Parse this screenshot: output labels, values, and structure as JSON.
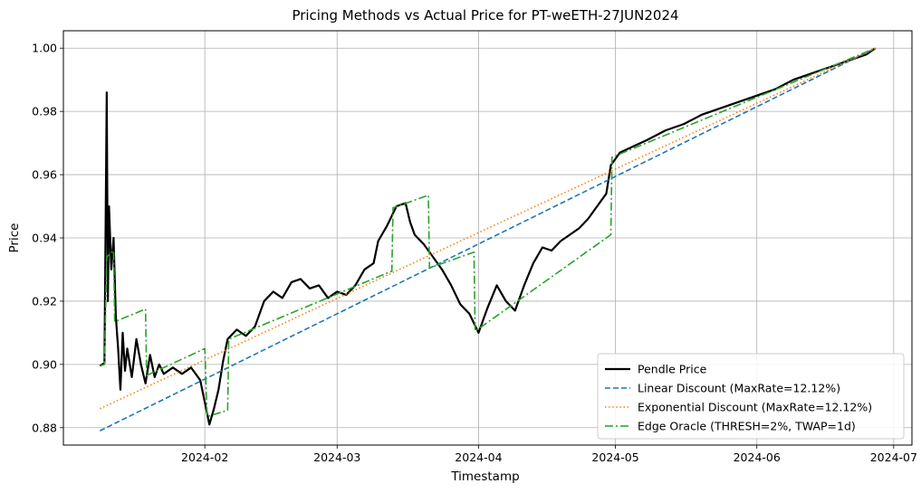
{
  "chart_data": {
    "type": "line",
    "title": "Pricing Methods vs Actual Price for PT-weETH-27JUN2024",
    "xlabel": "Timestamp",
    "ylabel": "Price",
    "xlim": [
      "2024-01-01",
      "2024-07-05"
    ],
    "ylim": [
      0.8745,
      1.0055
    ],
    "x_ticks": [
      "2024-02",
      "2024-03",
      "2024-04",
      "2024-05",
      "2024-06",
      "2024-07"
    ],
    "y_ticks": [
      "0.88",
      "0.90",
      "0.92",
      "0.94",
      "0.96",
      "0.98",
      "1.00"
    ],
    "grid": true,
    "legend_position": "lower-right",
    "series": [
      {
        "name": "Pendle Price",
        "color": "#000000",
        "style": "solid",
        "points": [
          [
            "2024-01-09",
            0.8995
          ],
          [
            "2024-01-10",
            0.9005
          ],
          [
            "2024-01-10T12",
            0.986
          ],
          [
            "2024-01-10T18",
            0.92
          ],
          [
            "2024-01-11",
            0.95
          ],
          [
            "2024-01-11T12",
            0.93
          ],
          [
            "2024-01-12",
            0.94
          ],
          [
            "2024-01-12T12",
            0.915
          ],
          [
            "2024-01-13",
            0.905
          ],
          [
            "2024-01-13T12",
            0.892
          ],
          [
            "2024-01-14",
            0.91
          ],
          [
            "2024-01-14T12",
            0.898
          ],
          [
            "2024-01-15",
            0.905
          ],
          [
            "2024-01-16",
            0.896
          ],
          [
            "2024-01-17",
            0.908
          ],
          [
            "2024-01-18",
            0.9
          ],
          [
            "2024-01-19",
            0.894
          ],
          [
            "2024-01-20",
            0.903
          ],
          [
            "2024-01-21",
            0.896
          ],
          [
            "2024-01-22",
            0.9
          ],
          [
            "2024-01-23",
            0.897
          ],
          [
            "2024-01-25",
            0.899
          ],
          [
            "2024-01-27",
            0.897
          ],
          [
            "2024-01-29",
            0.899
          ],
          [
            "2024-01-30",
            0.897
          ],
          [
            "2024-01-31",
            0.895
          ],
          [
            "2024-02-01",
            0.888
          ],
          [
            "2024-02-02",
            0.881
          ],
          [
            "2024-02-03",
            0.886
          ],
          [
            "2024-02-04",
            0.892
          ],
          [
            "2024-02-05",
            0.901
          ],
          [
            "2024-02-06",
            0.908
          ],
          [
            "2024-02-08",
            0.911
          ],
          [
            "2024-02-10",
            0.909
          ],
          [
            "2024-02-12",
            0.912
          ],
          [
            "2024-02-14",
            0.92
          ],
          [
            "2024-02-16",
            0.923
          ],
          [
            "2024-02-18",
            0.921
          ],
          [
            "2024-02-20",
            0.926
          ],
          [
            "2024-02-22",
            0.927
          ],
          [
            "2024-02-24",
            0.924
          ],
          [
            "2024-02-26",
            0.925
          ],
          [
            "2024-02-28",
            0.921
          ],
          [
            "2024-03-01",
            0.923
          ],
          [
            "2024-03-03",
            0.922
          ],
          [
            "2024-03-05",
            0.925
          ],
          [
            "2024-03-07",
            0.93
          ],
          [
            "2024-03-09",
            0.932
          ],
          [
            "2024-03-10",
            0.939
          ],
          [
            "2024-03-12",
            0.944
          ],
          [
            "2024-03-14",
            0.95
          ],
          [
            "2024-03-16",
            0.951
          ],
          [
            "2024-03-17",
            0.945
          ],
          [
            "2024-03-18",
            0.941
          ],
          [
            "2024-03-20",
            0.938
          ],
          [
            "2024-03-22",
            0.934
          ],
          [
            "2024-03-24",
            0.93
          ],
          [
            "2024-03-26",
            0.925
          ],
          [
            "2024-03-28",
            0.919
          ],
          [
            "2024-03-30",
            0.916
          ],
          [
            "2024-04-01",
            0.91
          ],
          [
            "2024-04-03",
            0.918
          ],
          [
            "2024-04-05",
            0.925
          ],
          [
            "2024-04-07",
            0.92
          ],
          [
            "2024-04-09",
            0.917
          ],
          [
            "2024-04-11",
            0.925
          ],
          [
            "2024-04-13",
            0.932
          ],
          [
            "2024-04-15",
            0.937
          ],
          [
            "2024-04-17",
            0.936
          ],
          [
            "2024-04-19",
            0.939
          ],
          [
            "2024-04-21",
            0.941
          ],
          [
            "2024-04-23",
            0.943
          ],
          [
            "2024-04-25",
            0.946
          ],
          [
            "2024-04-27",
            0.95
          ],
          [
            "2024-04-29",
            0.954
          ],
          [
            "2024-04-30",
            0.963
          ],
          [
            "2024-05-02",
            0.967
          ],
          [
            "2024-05-05",
            0.969
          ],
          [
            "2024-05-08",
            0.971
          ],
          [
            "2024-05-12",
            0.974
          ],
          [
            "2024-05-16",
            0.976
          ],
          [
            "2024-05-20",
            0.979
          ],
          [
            "2024-05-24",
            0.981
          ],
          [
            "2024-05-28",
            0.983
          ],
          [
            "2024-06-01",
            0.985
          ],
          [
            "2024-06-05",
            0.987
          ],
          [
            "2024-06-09",
            0.99
          ],
          [
            "2024-06-13",
            0.992
          ],
          [
            "2024-06-17",
            0.994
          ],
          [
            "2024-06-21",
            0.996
          ],
          [
            "2024-06-25",
            0.998
          ],
          [
            "2024-06-27",
            1.0
          ]
        ]
      },
      {
        "name": "Linear Discount (MaxRate=12.12%)",
        "color": "#1f77b4",
        "style": "dashed",
        "points": [
          [
            "2024-01-09",
            0.879
          ],
          [
            "2024-06-27",
            1.0
          ]
        ]
      },
      {
        "name": "Exponential Discount (MaxRate=12.12%)",
        "color": "#ff7f0e",
        "style": "dotted",
        "points": [
          [
            "2024-01-09",
            0.886
          ],
          [
            "2024-06-27",
            1.0
          ]
        ]
      },
      {
        "name": "Edge Oracle (THRESH=2%, TWAP=1d)",
        "color": "#2ca02c",
        "style": "dashdot",
        "points": [
          [
            "2024-01-09",
            0.8995
          ],
          [
            "2024-01-10",
            0.9
          ],
          [
            "2024-01-10T12",
            0.934
          ],
          [
            "2024-01-12",
            0.936
          ],
          [
            "2024-01-12T06",
            0.9135
          ],
          [
            "2024-01-19",
            0.9175
          ],
          [
            "2024-01-19T06",
            0.8965
          ],
          [
            "2024-02-01",
            0.905
          ],
          [
            "2024-02-01T12",
            0.8835
          ],
          [
            "2024-02-06",
            0.8855
          ],
          [
            "2024-02-06T06",
            0.908
          ],
          [
            "2024-03-13",
            0.9295
          ],
          [
            "2024-03-13T06",
            0.9495
          ],
          [
            "2024-03-21",
            0.9535
          ],
          [
            "2024-03-21T06",
            0.9305
          ],
          [
            "2024-03-31",
            0.9355
          ],
          [
            "2024-03-31T06",
            0.9105
          ],
          [
            "2024-04-30",
            0.941
          ],
          [
            "2024-04-30T06",
            0.9655
          ],
          [
            "2024-06-27",
            1.0
          ]
        ]
      }
    ]
  }
}
